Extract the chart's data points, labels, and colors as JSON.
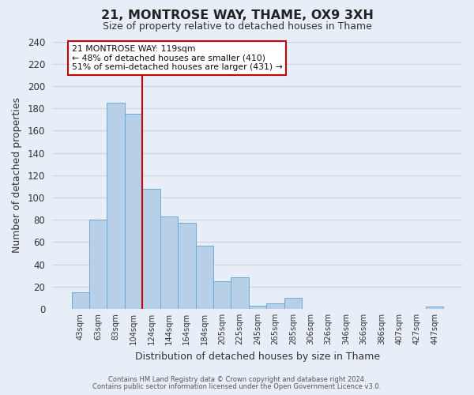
{
  "title": "21, MONTROSE WAY, THAME, OX9 3XH",
  "subtitle": "Size of property relative to detached houses in Thame",
  "xlabel": "Distribution of detached houses by size in Thame",
  "ylabel": "Number of detached properties",
  "bar_labels": [
    "43sqm",
    "63sqm",
    "83sqm",
    "104sqm",
    "124sqm",
    "144sqm",
    "164sqm",
    "184sqm",
    "205sqm",
    "225sqm",
    "245sqm",
    "265sqm",
    "285sqm",
    "306sqm",
    "326sqm",
    "346sqm",
    "366sqm",
    "386sqm",
    "407sqm",
    "427sqm",
    "447sqm"
  ],
  "bar_values": [
    15,
    80,
    185,
    175,
    108,
    83,
    77,
    57,
    25,
    28,
    3,
    5,
    10,
    0,
    0,
    0,
    0,
    0,
    0,
    0,
    2
  ],
  "bar_color": "#b8cfe8",
  "bar_edge_color": "#6aaad4",
  "vline_color": "#cc0000",
  "vline_pos": 3.5,
  "ylim": [
    0,
    240
  ],
  "yticks": [
    0,
    20,
    40,
    60,
    80,
    100,
    120,
    140,
    160,
    180,
    200,
    220,
    240
  ],
  "annotation_title": "21 MONTROSE WAY: 119sqm",
  "annotation_line1": "← 48% of detached houses are smaller (410)",
  "annotation_line2": "51% of semi-detached houses are larger (431) →",
  "annotation_box_color": "#ffffff",
  "annotation_box_edge": "#cc0000",
  "bg_color": "#e8eef8",
  "grid_color": "#c8d4e4",
  "footer1": "Contains HM Land Registry data © Crown copyright and database right 2024.",
  "footer2": "Contains public sector information licensed under the Open Government Licence v3.0."
}
